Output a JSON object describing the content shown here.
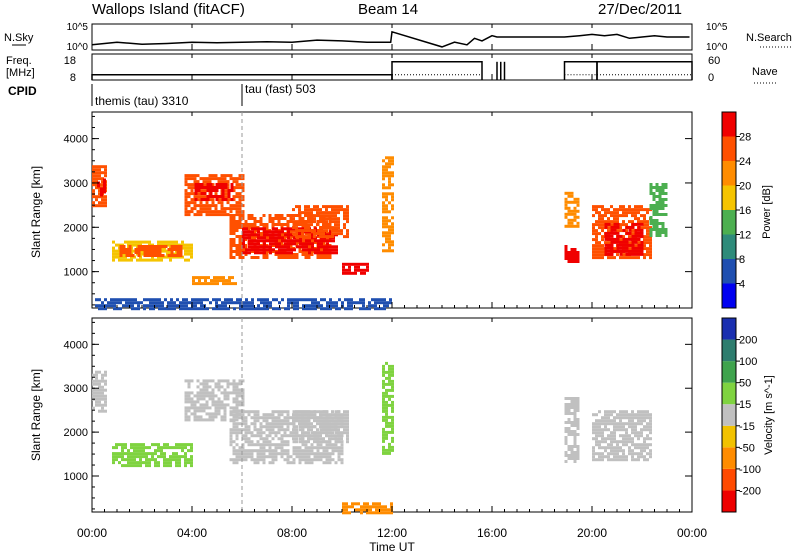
{
  "header": {
    "station": "Wallops Island (fitACF)",
    "beam": "Beam 14",
    "date": "27/Dec/2011"
  },
  "chart_data": [
    {
      "type": "line",
      "panel": "noise",
      "left_label": "N.Sky",
      "right_label": "N.Search",
      "left_ticks": [
        "10^5",
        "10^0"
      ],
      "right_ticks": [
        "10^5",
        "10^0"
      ],
      "x_hours": [
        0,
        0.5,
        1,
        2,
        3,
        4,
        5,
        6,
        7,
        8,
        9,
        10,
        11,
        11.95,
        12.0,
        14,
        14.5,
        15,
        15.3,
        15.6,
        16,
        16.2,
        18.9,
        19.5,
        20,
        20.5,
        21,
        21.5,
        22,
        22.5,
        23,
        23.9
      ],
      "y_frac": [
        0.2,
        0.25,
        0.3,
        0.22,
        0.25,
        0.3,
        0.28,
        0.3,
        0.32,
        0.3,
        0.38,
        0.35,
        0.3,
        0.3,
        0.7,
        0.12,
        0.3,
        0.2,
        0.45,
        0.35,
        0.55,
        0.5,
        0.5,
        0.55,
        0.6,
        0.55,
        0.6,
        0.45,
        0.5,
        0.55,
        0.5,
        0.5
      ]
    },
    {
      "type": "line",
      "panel": "frequency",
      "left_label_lines": [
        "Freq.",
        "[MHz]"
      ],
      "right_label": "Nave",
      "left_ticks": [
        "18",
        "8"
      ],
      "right_ticks": [
        "60",
        "0"
      ],
      "freq_segments_hours": [
        [
          0,
          12,
          10
        ],
        [
          12,
          15.6,
          15
        ],
        [
          18.9,
          20.2,
          15
        ],
        [
          20.2,
          24,
          15
        ]
      ],
      "freq_spikes_hours": [
        16.2,
        16.35,
        16.5
      ],
      "nave_value_frac": 0.2
    },
    {
      "type": "table",
      "panel": "cpid",
      "label": "CPID",
      "programs": [
        {
          "start_hour": 0,
          "name": "themis (tau) 3310"
        },
        {
          "start_hour": 6,
          "name": "tau (fast) 503"
        }
      ]
    },
    {
      "type": "heatmap",
      "panel": "power",
      "ylabel": "Slant Range [km]",
      "yticks": [
        "1000",
        "2000",
        "3000",
        "4000"
      ],
      "ylim": [
        180,
        4600
      ],
      "colorbar_title": "Power [dB]",
      "colorbar_ticks": [
        "4",
        "8",
        "12",
        "16",
        "20",
        "24",
        "28"
      ],
      "colorbar_colors": [
        "#0000f0",
        "#1f4fb0",
        "#2e8b7a",
        "#4caf50",
        "#f5c400",
        "#ff8c00",
        "#ff5000",
        "#f00000"
      ],
      "echo_regions": [
        {
          "t0": 0.0,
          "t1": 0.55,
          "r0": 2500,
          "r1": 3400,
          "c": 6
        },
        {
          "t0": 0.2,
          "t1": 0.45,
          "r0": 2700,
          "r1": 3100,
          "c": 7
        },
        {
          "t0": 0.8,
          "t1": 4.0,
          "r0": 1250,
          "r1": 1700,
          "c": 4
        },
        {
          "t0": 1.1,
          "t1": 3.6,
          "r0": 1350,
          "r1": 1600,
          "c": 6
        },
        {
          "t0": 3.7,
          "t1": 6.0,
          "r0": 2300,
          "r1": 3200,
          "c": 6
        },
        {
          "t0": 4.1,
          "t1": 5.6,
          "r0": 2600,
          "r1": 3000,
          "c": 7
        },
        {
          "t0": 5.5,
          "t1": 9.5,
          "r0": 1300,
          "r1": 2300,
          "c": 6
        },
        {
          "t0": 6.0,
          "t1": 9.8,
          "r0": 1400,
          "r1": 2000,
          "c": 7
        },
        {
          "t0": 8.0,
          "t1": 10.2,
          "r0": 1800,
          "r1": 2500,
          "c": 6
        },
        {
          "t0": 4.0,
          "t1": 5.8,
          "r0": 700,
          "r1": 900,
          "c": 5
        },
        {
          "t0": 10.0,
          "t1": 11.0,
          "r0": 950,
          "r1": 1200,
          "c": 7
        },
        {
          "t0": 11.6,
          "t1": 12.0,
          "r0": 1500,
          "r1": 3600,
          "c": 5
        },
        {
          "t0": 18.9,
          "t1": 19.5,
          "r0": 1200,
          "r1": 1600,
          "c": 7
        },
        {
          "t0": 18.9,
          "t1": 19.5,
          "r0": 2000,
          "r1": 2800,
          "c": 5
        },
        {
          "t0": 20.0,
          "t1": 22.3,
          "r0": 1300,
          "r1": 2500,
          "c": 6
        },
        {
          "t0": 20.5,
          "t1": 22.0,
          "r0": 1400,
          "r1": 2100,
          "c": 7
        },
        {
          "t0": 22.3,
          "t1": 23.0,
          "r0": 1800,
          "r1": 3000,
          "c": 3
        },
        {
          "t0": 0.0,
          "t1": 12.0,
          "r0": 180,
          "r1": 400,
          "c": 1
        }
      ]
    },
    {
      "type": "heatmap",
      "panel": "velocity",
      "ylabel": "Slant Range [km]",
      "yticks": [
        "1000",
        "2000",
        "3000",
        "4000"
      ],
      "ylim": [
        180,
        4600
      ],
      "colorbar_title": "Velocity [m s^-1]",
      "colorbar_ticks": [
        "200",
        "100",
        "50",
        "15",
        "-15",
        "-50",
        "-100",
        "-200"
      ],
      "colorbar_colors": [
        "#1a2fb0",
        "#2e7d6e",
        "#3fa34d",
        "#7fd340",
        "#c0c0c0",
        "#f2c200",
        "#ff8c00",
        "#ff4a00",
        "#ee0000"
      ],
      "echo_regions": [
        {
          "t0": 0.0,
          "t1": 0.55,
          "r0": 2500,
          "r1": 3400,
          "c": 4
        },
        {
          "t0": 0.8,
          "t1": 4.0,
          "r0": 1250,
          "r1": 1750,
          "c": 3
        },
        {
          "t0": 3.7,
          "t1": 6.0,
          "r0": 2300,
          "r1": 3200,
          "c": 4
        },
        {
          "t0": 5.5,
          "t1": 10.0,
          "r0": 1300,
          "r1": 2500,
          "c": 4
        },
        {
          "t0": 8.0,
          "t1": 10.2,
          "r0": 1800,
          "r1": 2500,
          "c": 4
        },
        {
          "t0": 11.6,
          "t1": 12.0,
          "r0": 1500,
          "r1": 3600,
          "c": 3
        },
        {
          "t0": 18.9,
          "t1": 19.5,
          "r0": 1300,
          "r1": 2800,
          "c": 4
        },
        {
          "t0": 20.0,
          "t1": 22.3,
          "r0": 1400,
          "r1": 2500,
          "c": 4
        },
        {
          "t0": 10.0,
          "t1": 12.0,
          "r0": 180,
          "r1": 400,
          "c": 6
        }
      ]
    }
  ],
  "x_axis": {
    "label": "Time UT",
    "ticks": [
      "00:00",
      "04:00",
      "08:00",
      "12:00",
      "16:00",
      "20:00",
      "00:00"
    ],
    "xlim_hours": [
      0,
      24
    ],
    "program_change_hour": 6
  }
}
